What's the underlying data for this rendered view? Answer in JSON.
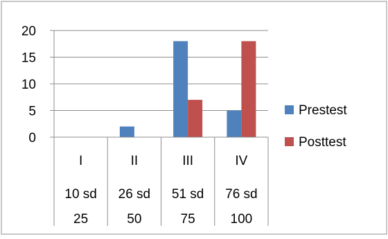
{
  "chart_data": {
    "type": "bar",
    "title": "",
    "xlabel": "",
    "ylabel": "",
    "ylim": [
      0,
      20
    ],
    "yticks": [
      0,
      5,
      10,
      15,
      20
    ],
    "grid": true,
    "legend_position": "right",
    "categories": [
      {
        "label": "I",
        "range_line1": "10 sd",
        "range_line2": "25"
      },
      {
        "label": "II",
        "range_line1": "26 sd",
        "range_line2": "50"
      },
      {
        "label": "III",
        "range_line1": "51 sd",
        "range_line2": "75"
      },
      {
        "label": "IV",
        "range_line1": "76 sd",
        "range_line2": "100"
      }
    ],
    "series": [
      {
        "name": "Prestest",
        "color": "#4F81BD",
        "values": [
          0,
          2,
          18,
          5
        ]
      },
      {
        "name": "Posttest",
        "color": "#C0504D",
        "values": [
          0,
          0,
          7,
          18
        ]
      }
    ]
  }
}
